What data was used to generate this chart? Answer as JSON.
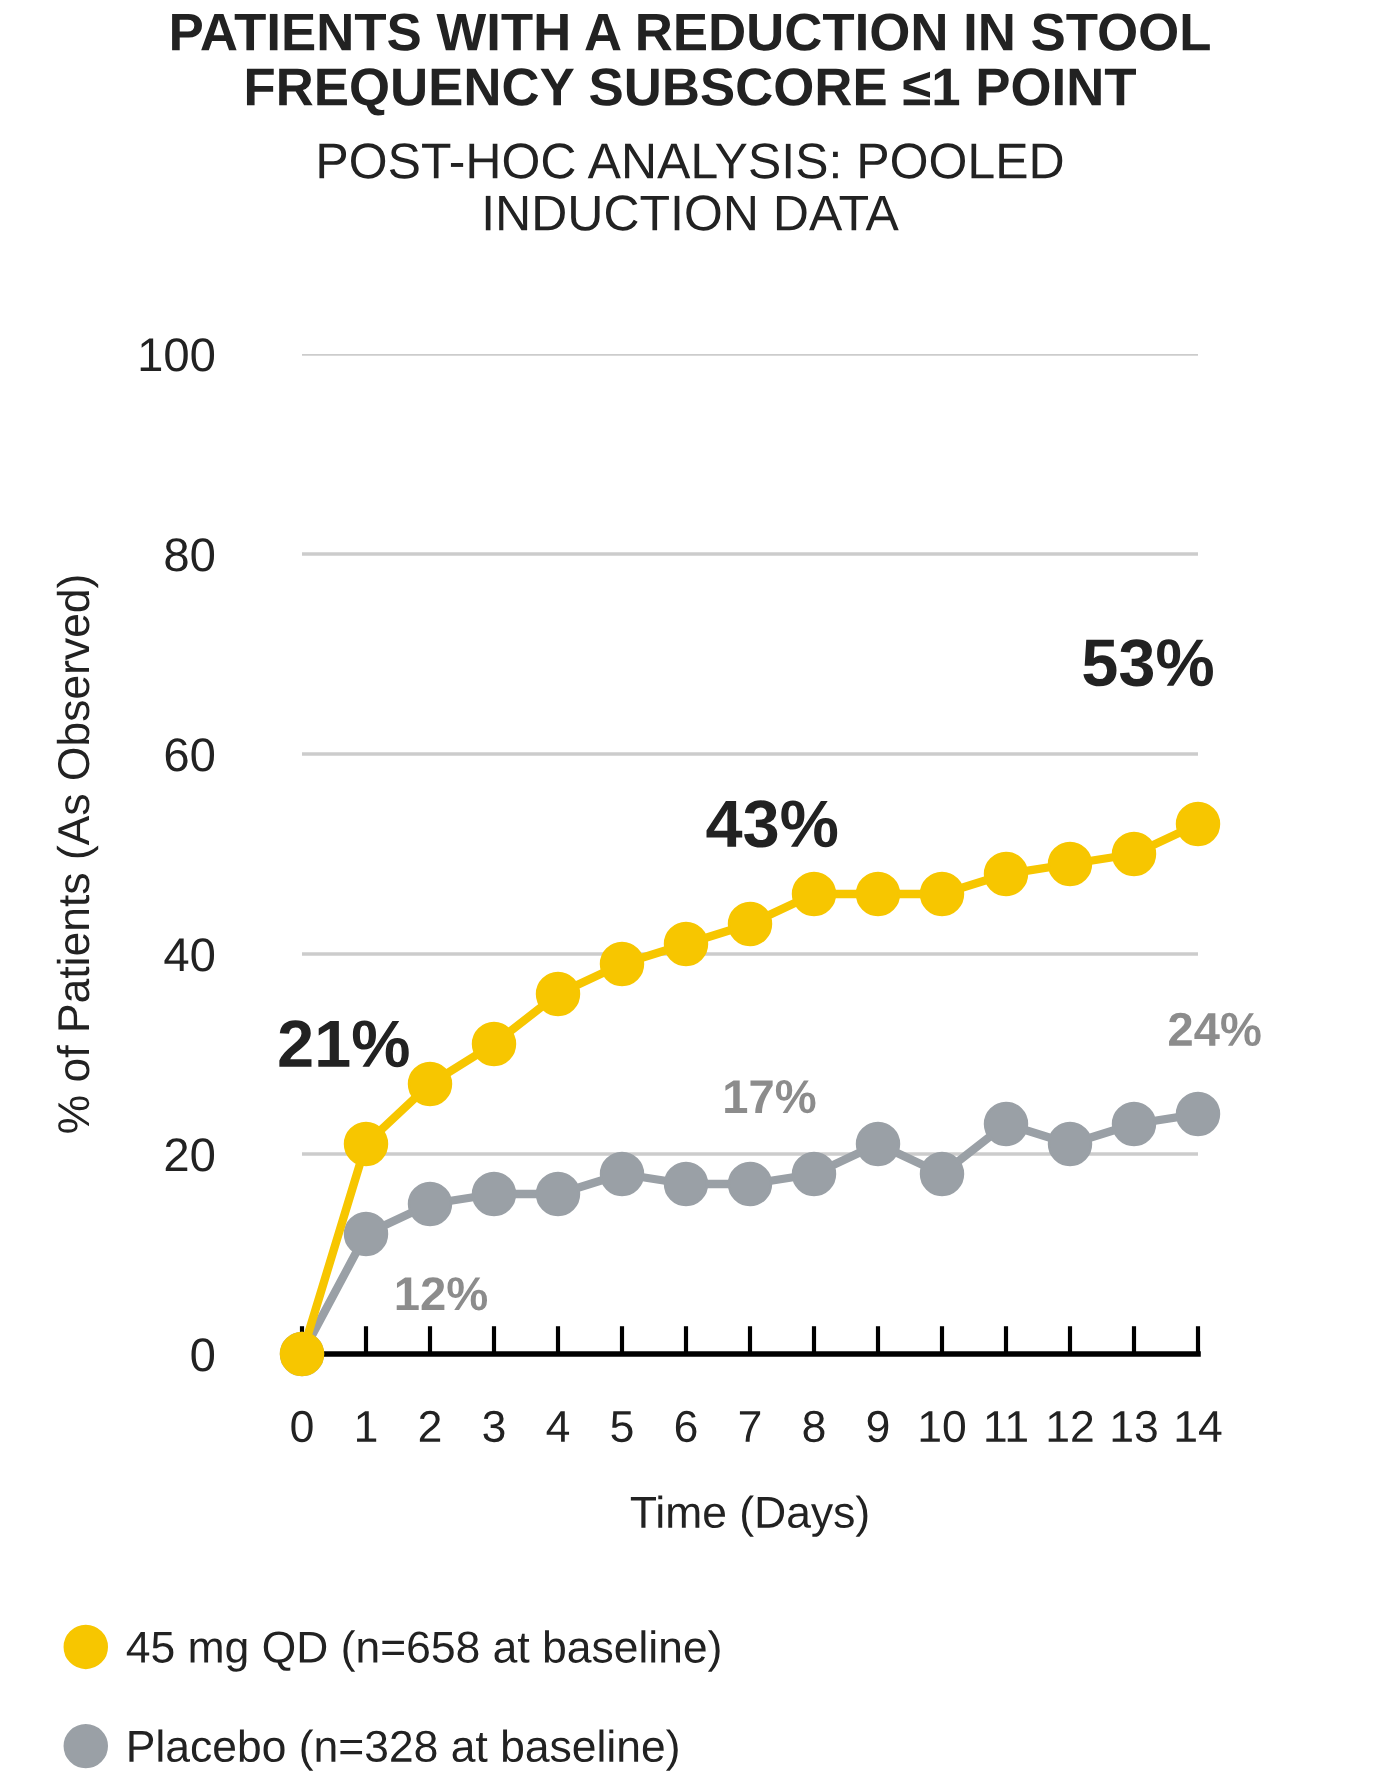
{
  "chart_data": {
    "type": "line",
    "title": "PATIENTS WITH A REDUCTION IN STOOL FREQUENCY SUBSCORE ≤1 POINT",
    "subtitle": "POST-HOC ANALYSIS: POOLED INDUCTION DATA",
    "xlabel": "Time (Days)",
    "ylabel": "% of Patients (As Observed)",
    "x": [
      0,
      1,
      2,
      3,
      4,
      5,
      6,
      7,
      8,
      9,
      10,
      11,
      12,
      13,
      14
    ],
    "series": [
      {
        "name": "45 mg QD (n=658 at baseline)",
        "color": "#f7c600",
        "values": [
          0,
          21,
          27,
          31,
          36,
          39,
          41,
          43,
          46,
          46,
          46,
          48,
          49,
          50,
          53
        ]
      },
      {
        "name": "Placebo (n=328 at baseline)",
        "color": "#9aa0a6",
        "values": [
          0,
          12,
          15,
          16,
          16,
          18,
          17,
          17,
          18,
          21,
          18,
          23,
          21,
          23,
          24
        ]
      }
    ],
    "xlim": [
      0,
      14
    ],
    "xticks": [
      0,
      1,
      2,
      3,
      4,
      5,
      6,
      7,
      8,
      9,
      10,
      11,
      12,
      13,
      14
    ],
    "ylim": [
      0,
      100
    ],
    "yticks": [
      0,
      20,
      40,
      60,
      80,
      100
    ],
    "grid": "y",
    "legend": "bottom",
    "marker": "circle",
    "line_style": "solid",
    "annotations": [
      {
        "text": "21%",
        "x": 1,
        "y": 21
      },
      {
        "text": "43%",
        "x": 7,
        "y": 43
      },
      {
        "text": "53%",
        "x": 14,
        "y": 53
      },
      {
        "text": "12%",
        "x": 1,
        "y": 12
      },
      {
        "text": "17%",
        "x": 7,
        "y": 17
      },
      {
        "text": "24%",
        "x": 14,
        "y": 24
      }
    ]
  }
}
